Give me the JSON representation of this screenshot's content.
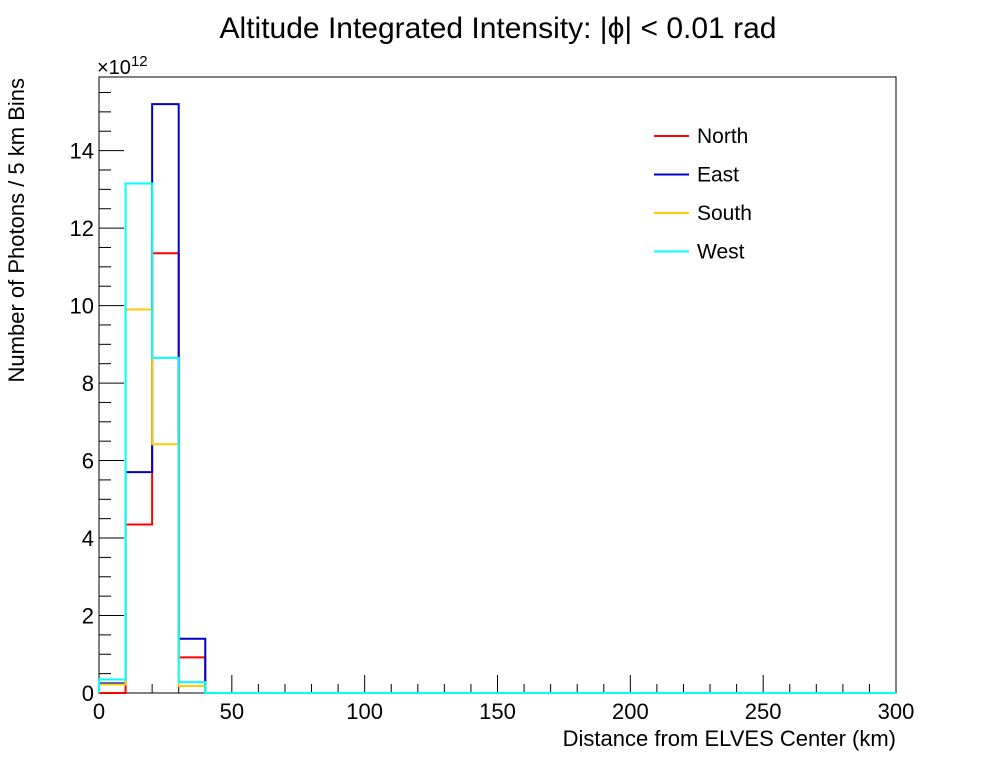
{
  "chart_data": {
    "type": "histogram",
    "title": "Altitude Integrated Intensity: |ϕ| < 0.01 rad",
    "xlabel": "Distance from ELVES Center (km)",
    "ylabel": "Number of Photons / 5 km Bins",
    "exponent_label": "×10",
    "exponent_power": "12",
    "xlim": [
      0,
      300
    ],
    "ylim": [
      0,
      15.9
    ],
    "x_ticks": [
      "0",
      "50",
      "100",
      "150",
      "200",
      "250",
      "300"
    ],
    "y_ticks": [
      "0",
      "2",
      "4",
      "6",
      "8",
      "10",
      "12",
      "14"
    ],
    "bin_edges": [
      0,
      10,
      20,
      30,
      40,
      300
    ],
    "legend_position": "top-right",
    "series": [
      {
        "name": "North",
        "color": "#ff0000",
        "values": [
          0.0,
          4.35,
          11.35,
          0.92,
          0.0
        ]
      },
      {
        "name": "East",
        "color": "#0000cc",
        "values": [
          0.25,
          5.7,
          15.2,
          1.4,
          0.0
        ]
      },
      {
        "name": "South",
        "color": "#ffcc00",
        "values": [
          0.22,
          9.9,
          6.42,
          0.18,
          0.0
        ]
      },
      {
        "name": "West",
        "color": "#00ffff",
        "values": [
          0.35,
          13.15,
          8.65,
          0.28,
          0.0
        ]
      }
    ]
  }
}
